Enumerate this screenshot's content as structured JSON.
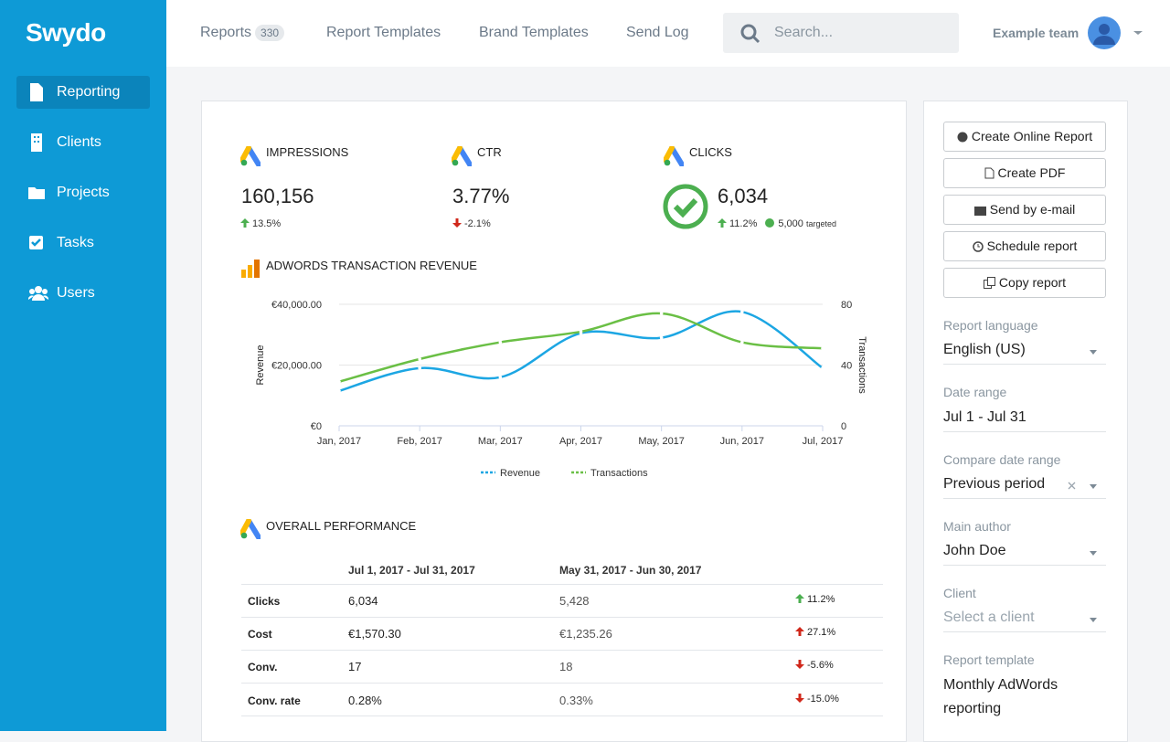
{
  "sidebar": {
    "logo": "Swydo",
    "nav": [
      "Reporting",
      "Clients",
      "Projects",
      "Tasks",
      "Users"
    ]
  },
  "topbar": {
    "tabs": [
      "Reports",
      "Report Templates",
      "Brand Templates",
      "Send Log"
    ],
    "reports_count": "330",
    "search_placeholder": "Search...",
    "team": "Example team"
  },
  "kpis": [
    {
      "label": "IMPRESSIONS",
      "value": "160,156",
      "change": "13.5%"
    },
    {
      "label": "CTR",
      "value": "3.77%",
      "change": "-2.1%"
    },
    {
      "label": "CLICKS",
      "value": "6,034",
      "change": "11.2%",
      "target": "5,000",
      "target_note": "targeted"
    }
  ],
  "chart_data": {
    "type": "line",
    "title": "ADWORDS TRANSACTION REVENUE",
    "y_label": "Revenue",
    "y2_label": "Transactions",
    "categories": [
      "Jan, 2017",
      "Feb, 2017",
      "Mar, 2017",
      "Apr, 2017",
      "May, 2017",
      "Jun, 2017",
      "Jul, 2017"
    ],
    "series": [
      {
        "name": "Revenue",
        "color": "#1ca6e3",
        "values": [
          11500,
          19000,
          16000,
          30500,
          29000,
          37500,
          19000
        ]
      },
      {
        "name": "Transactions",
        "color": "#6abf45",
        "axis": "y2",
        "values": [
          29,
          44,
          55,
          62,
          74,
          55,
          51
        ]
      }
    ],
    "ylim": [
      0,
      40000
    ],
    "yticks": [
      {
        "value": 0,
        "label": "€0"
      },
      {
        "value": 20000,
        "label": "€20,000.00"
      },
      {
        "value": 40000,
        "label": "€40,000.00"
      }
    ],
    "y2lim": [
      0,
      80
    ],
    "y2ticks": [
      0,
      40,
      80
    ],
    "grid": true,
    "legend": "bottom"
  },
  "performance": {
    "title": "OVERALL PERFORMANCE",
    "columns": [
      "Jul 1, 2017 - Jul 31, 2017",
      "May 31, 2017 - Jun 30, 2017"
    ],
    "rows": [
      [
        "Clicks",
        "6,034",
        "5,428",
        "11.2%"
      ],
      [
        "Cost",
        "€1,570.30",
        "€1,235.26",
        "27.1%"
      ],
      [
        "Conv.",
        "17",
        "18",
        "-5.6%"
      ],
      [
        "Conv. rate",
        "0.28%",
        "0.33%",
        "-15.0%"
      ]
    ]
  },
  "actions": [
    "Create Online Report",
    "Create PDF",
    "Send by e-mail",
    "Schedule report",
    "Copy report"
  ],
  "settings": [
    {
      "label": "Report language",
      "value": "English (US)"
    },
    {
      "label": "Date range",
      "value": "Jul 1 - Jul 31"
    },
    {
      "label": "Compare date range",
      "value": "Previous period"
    },
    {
      "label": "Main author",
      "value": "John Doe"
    },
    {
      "label": "Client",
      "value": "Select a client"
    },
    {
      "label": "Report template",
      "value": "Monthly AdWords reporting"
    }
  ]
}
